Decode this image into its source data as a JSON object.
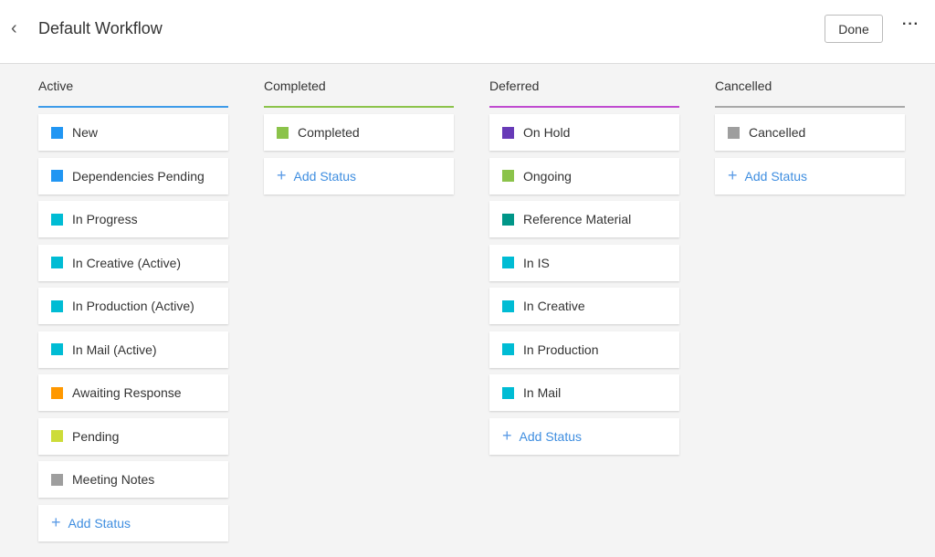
{
  "header": {
    "title": "Default Workflow",
    "done_label": "Done",
    "back_icon": "chevron-left-icon",
    "more_icon": "ellipsis-icon"
  },
  "add_label": "Add Status",
  "columns": [
    {
      "title": "Active",
      "color": "#3d9be9",
      "items": [
        {
          "label": "New",
          "color": "#2196f3"
        },
        {
          "label": "Dependencies Pending",
          "color": "#2196f3"
        },
        {
          "label": "In Progress",
          "color": "#00bcd4"
        },
        {
          "label": "In Creative (Active)",
          "color": "#00bcd4"
        },
        {
          "label": "In Production (Active)",
          "color": "#00bcd4"
        },
        {
          "label": "In Mail (Active)",
          "color": "#00bcd4"
        },
        {
          "label": "Awaiting Response",
          "color": "#ff9800"
        },
        {
          "label": "Pending",
          "color": "#cddc39"
        },
        {
          "label": "Meeting Notes",
          "color": "#9e9e9e"
        }
      ]
    },
    {
      "title": "Completed",
      "color": "#8bc34a",
      "items": [
        {
          "label": "Completed",
          "color": "#8bc34a"
        }
      ]
    },
    {
      "title": "Deferred",
      "color": "#c04ad0",
      "items": [
        {
          "label": "On Hold",
          "color": "#673ab7"
        },
        {
          "label": "Ongoing",
          "color": "#8bc34a"
        },
        {
          "label": "Reference Material",
          "color": "#009688"
        },
        {
          "label": "In IS",
          "color": "#00bcd4"
        },
        {
          "label": "In Creative",
          "color": "#00bcd4"
        },
        {
          "label": "In Production",
          "color": "#00bcd4"
        },
        {
          "label": "In Mail",
          "color": "#00bcd4"
        }
      ]
    },
    {
      "title": "Cancelled",
      "color": "#a8a8a8",
      "items": [
        {
          "label": "Cancelled",
          "color": "#9e9e9e"
        }
      ]
    }
  ]
}
